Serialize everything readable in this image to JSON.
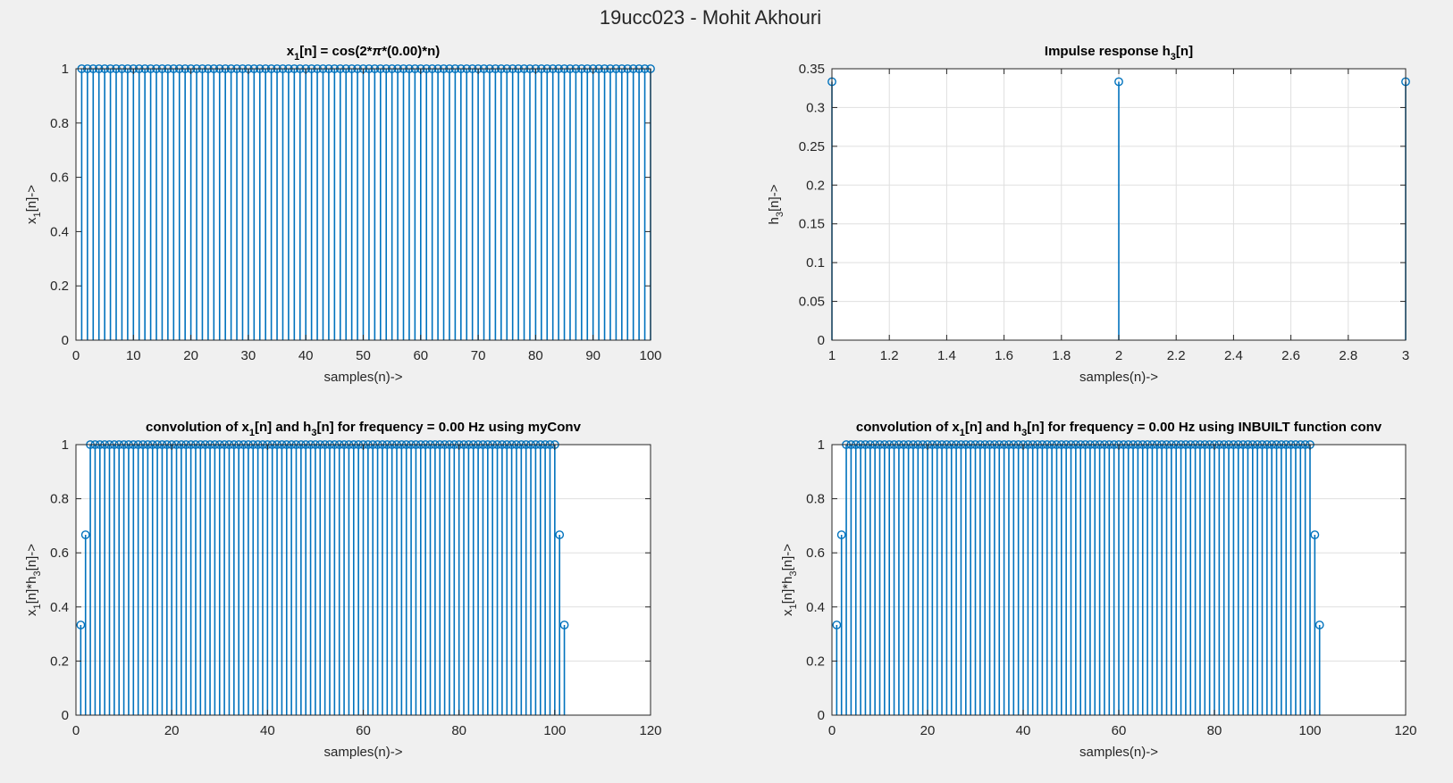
{
  "figure": {
    "title": "19ucc023 - Mohit Akhouri",
    "background": "#f0f0f0",
    "axes_background": "#ffffff",
    "line_color": "#0072bd",
    "grid_color": "#dfdfdf"
  },
  "chart_data": [
    {
      "id": "x1",
      "type": "stem",
      "title_parts": [
        {
          "t": "x"
        },
        {
          "t": "1",
          "sub": true
        },
        {
          "t": "[n] = cos(2*"
        },
        {
          "t": "π",
          "italic": true
        },
        {
          "t": "*(0.00)*n)"
        }
      ],
      "xlabel": "samples(n)->",
      "ylabel_parts": [
        {
          "t": "x"
        },
        {
          "t": "1",
          "sub": true
        },
        {
          "t": "[n]->"
        }
      ],
      "xlim": [
        0,
        100
      ],
      "ylim": [
        0,
        1
      ],
      "xticks": [
        0,
        10,
        20,
        30,
        40,
        50,
        60,
        70,
        80,
        90,
        100
      ],
      "yticks": [
        0,
        0.2,
        0.4,
        0.6,
        0.8,
        1
      ],
      "grid": false,
      "series": [
        {
          "x_start": 1,
          "values": [
            1,
            1,
            1,
            1,
            1,
            1,
            1,
            1,
            1,
            1,
            1,
            1,
            1,
            1,
            1,
            1,
            1,
            1,
            1,
            1,
            1,
            1,
            1,
            1,
            1,
            1,
            1,
            1,
            1,
            1,
            1,
            1,
            1,
            1,
            1,
            1,
            1,
            1,
            1,
            1,
            1,
            1,
            1,
            1,
            1,
            1,
            1,
            1,
            1,
            1,
            1,
            1,
            1,
            1,
            1,
            1,
            1,
            1,
            1,
            1,
            1,
            1,
            1,
            1,
            1,
            1,
            1,
            1,
            1,
            1,
            1,
            1,
            1,
            1,
            1,
            1,
            1,
            1,
            1,
            1,
            1,
            1,
            1,
            1,
            1,
            1,
            1,
            1,
            1,
            1,
            1,
            1,
            1,
            1,
            1,
            1,
            1,
            1,
            1,
            1
          ]
        }
      ]
    },
    {
      "id": "h3",
      "type": "stem",
      "title_parts": [
        {
          "t": "Impulse response h"
        },
        {
          "t": "3",
          "sub": true
        },
        {
          "t": "[n]"
        }
      ],
      "xlabel": "samples(n)->",
      "ylabel_parts": [
        {
          "t": "h"
        },
        {
          "t": "3",
          "sub": true
        },
        {
          "t": "[n]->"
        }
      ],
      "xlim": [
        1,
        3
      ],
      "ylim": [
        0,
        0.35
      ],
      "xticks": [
        1,
        1.2,
        1.4,
        1.6,
        1.8,
        2,
        2.2,
        2.4,
        2.6,
        2.8,
        3
      ],
      "yticks": [
        0,
        0.05,
        0.1,
        0.15,
        0.2,
        0.25,
        0.3,
        0.35
      ],
      "grid": true,
      "series": [
        {
          "x_start": 1,
          "values": [
            0.3333,
            0.3333,
            0.3333
          ]
        }
      ]
    },
    {
      "id": "myconv",
      "type": "stem",
      "title_parts": [
        {
          "t": "convolution of x"
        },
        {
          "t": "1",
          "sub": true
        },
        {
          "t": "[n] and h"
        },
        {
          "t": "3",
          "sub": true
        },
        {
          "t": "[n] for frequency = 0.00 Hz using myConv"
        }
      ],
      "xlabel": "samples(n)->",
      "ylabel_parts": [
        {
          "t": "x"
        },
        {
          "t": "1",
          "sub": true
        },
        {
          "t": "[n]*h"
        },
        {
          "t": "3",
          "sub": true
        },
        {
          "t": "[n]->"
        }
      ],
      "xlim": [
        0,
        120
      ],
      "ylim": [
        0,
        1
      ],
      "xticks": [
        0,
        20,
        40,
        60,
        80,
        100,
        120
      ],
      "yticks": [
        0,
        0.2,
        0.4,
        0.6,
        0.8,
        1
      ],
      "grid": true,
      "series": [
        {
          "x_start": 1,
          "values": [
            0.3333,
            0.6667,
            1,
            1,
            1,
            1,
            1,
            1,
            1,
            1,
            1,
            1,
            1,
            1,
            1,
            1,
            1,
            1,
            1,
            1,
            1,
            1,
            1,
            1,
            1,
            1,
            1,
            1,
            1,
            1,
            1,
            1,
            1,
            1,
            1,
            1,
            1,
            1,
            1,
            1,
            1,
            1,
            1,
            1,
            1,
            1,
            1,
            1,
            1,
            1,
            1,
            1,
            1,
            1,
            1,
            1,
            1,
            1,
            1,
            1,
            1,
            1,
            1,
            1,
            1,
            1,
            1,
            1,
            1,
            1,
            1,
            1,
            1,
            1,
            1,
            1,
            1,
            1,
            1,
            1,
            1,
            1,
            1,
            1,
            1,
            1,
            1,
            1,
            1,
            1,
            1,
            1,
            1,
            1,
            1,
            1,
            1,
            1,
            1,
            1,
            0.6667,
            0.3333
          ]
        }
      ]
    },
    {
      "id": "inbuilt",
      "type": "stem",
      "title_parts": [
        {
          "t": "convolution of x"
        },
        {
          "t": "1",
          "sub": true
        },
        {
          "t": "[n] and h"
        },
        {
          "t": "3",
          "sub": true
        },
        {
          "t": "[n] for frequency = 0.00 Hz using INBUILT function conv"
        }
      ],
      "xlabel": "samples(n)->",
      "ylabel_parts": [
        {
          "t": "x"
        },
        {
          "t": "1",
          "sub": true
        },
        {
          "t": "[n]*h"
        },
        {
          "t": "3",
          "sub": true
        },
        {
          "t": "[n]->"
        }
      ],
      "xlim": [
        0,
        120
      ],
      "ylim": [
        0,
        1
      ],
      "xticks": [
        0,
        20,
        40,
        60,
        80,
        100,
        120
      ],
      "yticks": [
        0,
        0.2,
        0.4,
        0.6,
        0.8,
        1
      ],
      "grid": true,
      "series": [
        {
          "x_start": 1,
          "values": [
            0.3333,
            0.6667,
            1,
            1,
            1,
            1,
            1,
            1,
            1,
            1,
            1,
            1,
            1,
            1,
            1,
            1,
            1,
            1,
            1,
            1,
            1,
            1,
            1,
            1,
            1,
            1,
            1,
            1,
            1,
            1,
            1,
            1,
            1,
            1,
            1,
            1,
            1,
            1,
            1,
            1,
            1,
            1,
            1,
            1,
            1,
            1,
            1,
            1,
            1,
            1,
            1,
            1,
            1,
            1,
            1,
            1,
            1,
            1,
            1,
            1,
            1,
            1,
            1,
            1,
            1,
            1,
            1,
            1,
            1,
            1,
            1,
            1,
            1,
            1,
            1,
            1,
            1,
            1,
            1,
            1,
            1,
            1,
            1,
            1,
            1,
            1,
            1,
            1,
            1,
            1,
            1,
            1,
            1,
            1,
            1,
            1,
            1,
            1,
            1,
            1,
            0.6667,
            0.3333
          ]
        }
      ]
    }
  ]
}
